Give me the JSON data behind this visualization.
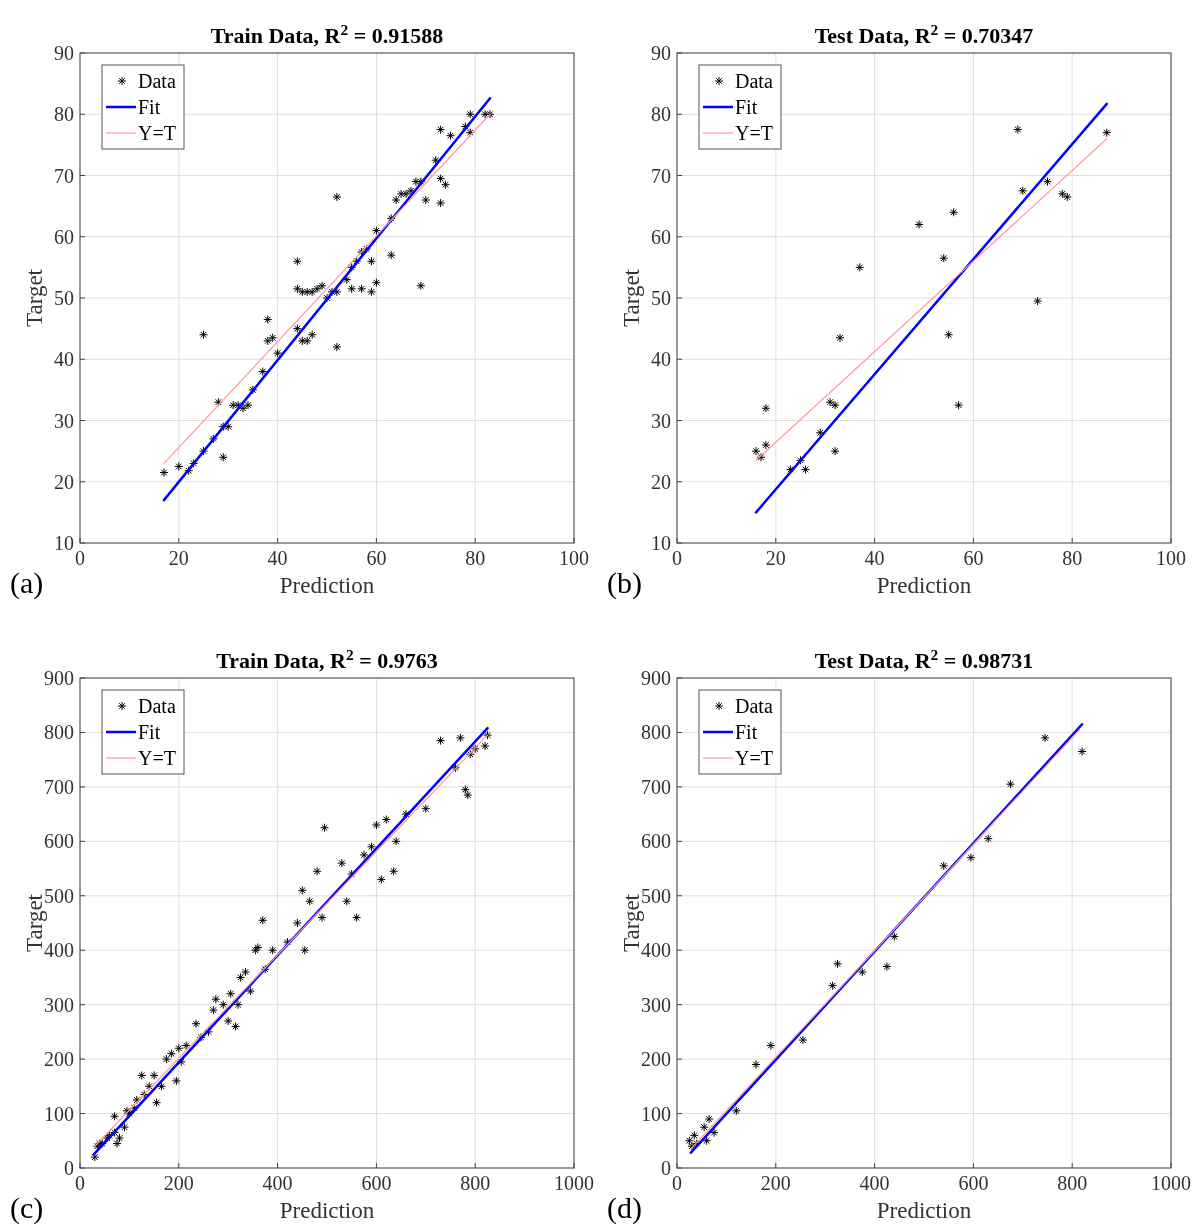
{
  "chart_data": [
    {
      "type": "scatter",
      "title": "Train Data, R$^{2}$ = 0.91588",
      "xlabel": "Prediction",
      "ylabel": "Target",
      "annotations": [
        "(a)"
      ],
      "xlim": [
        0,
        100
      ],
      "ylim": [
        10,
        90
      ],
      "xticks": [
        0,
        20,
        40,
        60,
        80,
        100
      ],
      "yticks": [
        10,
        20,
        30,
        40,
        50,
        60,
        70,
        80,
        90
      ],
      "grid": true,
      "legend": "top left",
      "series": [
        {
          "name": "Data",
          "marker": "cross",
          "color": "#000000",
          "x": [
            17,
            20,
            22,
            23,
            25,
            25,
            27,
            28,
            29,
            29,
            30,
            31,
            32,
            33,
            34,
            35,
            37,
            38,
            39,
            38,
            40,
            44,
            44,
            44,
            45,
            45,
            46,
            46,
            47,
            47,
            48,
            49,
            50,
            51,
            52,
            52,
            52,
            54,
            55,
            55,
            56,
            57,
            57,
            58,
            59,
            59,
            60,
            60,
            63,
            63,
            64,
            65,
            66,
            67,
            68,
            69,
            69,
            70,
            72,
            73,
            73,
            73,
            74,
            75,
            78,
            79,
            79,
            82,
            83
          ],
          "values": [
            21.5,
            22.5,
            21.8,
            23,
            25,
            44,
            27,
            33,
            24,
            29,
            29,
            32.5,
            32.5,
            32,
            32.5,
            35,
            38,
            43,
            43.5,
            46.5,
            41,
            45,
            56,
            51.5,
            43,
            51,
            43,
            51,
            44,
            51,
            51.5,
            52,
            50,
            51,
            42,
            66.5,
            51,
            53,
            55,
            51.5,
            56,
            51.5,
            57.5,
            58,
            56,
            51,
            61,
            52.5,
            57,
            63,
            66,
            67,
            67,
            67.5,
            69,
            52,
            69,
            66,
            72.5,
            69.5,
            65.5,
            77.5,
            68.5,
            76.5,
            78,
            77,
            80,
            80,
            80
          ]
        },
        {
          "name": "Fit",
          "type": "line",
          "line_style": "solid",
          "color": "#0000ff",
          "x": [
            17,
            83
          ],
          "values": [
            17,
            82.6
          ]
        },
        {
          "name": "Y=T",
          "type": "line",
          "line_style": "solid",
          "color": "#ff9999",
          "x": [
            17,
            83
          ],
          "values": [
            23,
            80
          ]
        }
      ]
    },
    {
      "type": "scatter",
      "title": "Test Data, R$^{2}$ = 0.70347",
      "xlabel": "Prediction",
      "ylabel": "Target",
      "annotations": [
        "(b)"
      ],
      "xlim": [
        0,
        100
      ],
      "ylim": [
        10,
        90
      ],
      "xticks": [
        0,
        20,
        40,
        60,
        80,
        100
      ],
      "yticks": [
        10,
        20,
        30,
        40,
        50,
        60,
        70,
        80,
        90
      ],
      "grid": true,
      "legend": "top left",
      "series": [
        {
          "name": "Data",
          "marker": "cross",
          "color": "#000000",
          "x": [
            16,
            17,
            18,
            18,
            23,
            25,
            26,
            29,
            31,
            32,
            32,
            33,
            37,
            49,
            54,
            55,
            56,
            57,
            69,
            70,
            73,
            75,
            78,
            79,
            87
          ],
          "values": [
            25,
            24,
            26,
            32,
            22,
            23.5,
            22,
            28,
            33,
            32.5,
            25,
            43.5,
            55,
            62,
            56.5,
            44,
            64,
            32.5,
            77.5,
            67.5,
            49.5,
            69,
            67,
            66.5,
            77
          ]
        },
        {
          "name": "Fit",
          "type": "line",
          "line_style": "solid",
          "color": "#0000ff",
          "x": [
            16,
            87
          ],
          "values": [
            15,
            81.7
          ]
        },
        {
          "name": "Y=T",
          "type": "line",
          "line_style": "solid",
          "color": "#ff9999",
          "x": [
            16,
            87
          ],
          "values": [
            23.5,
            76
          ]
        }
      ]
    },
    {
      "type": "scatter",
      "title": "Train Data, R$^{2}$ = 0.9763",
      "xlabel": "Prediction",
      "ylabel": "Target",
      "annotations": [
        "(c)"
      ],
      "xlim": [
        0,
        1000
      ],
      "ylim": [
        0,
        900
      ],
      "xticks": [
        0,
        200,
        400,
        600,
        800,
        1000
      ],
      "yticks": [
        0,
        100,
        200,
        300,
        400,
        500,
        600,
        700,
        800,
        900
      ],
      "grid": true,
      "legend": "top left",
      "series": [
        {
          "name": "Data",
          "marker": "cross",
          "color": "#000000",
          "x": [
            30,
            35,
            40,
            45,
            55,
            60,
            70,
            70,
            75,
            80,
            90,
            95,
            100,
            110,
            115,
            125,
            130,
            140,
            150,
            155,
            165,
            175,
            185,
            195,
            200,
            205,
            215,
            235,
            245,
            260,
            270,
            275,
            290,
            300,
            305,
            315,
            320,
            325,
            335,
            345,
            355,
            360,
            370,
            375,
            390,
            420,
            440,
            450,
            455,
            465,
            480,
            490,
            495,
            530,
            540,
            550,
            560,
            575,
            590,
            600,
            610,
            620,
            635,
            640,
            660,
            700,
            730,
            760,
            770,
            780,
            785,
            790,
            800,
            820,
            825
          ],
          "values": [
            20,
            40,
            45,
            45,
            55,
            60,
            95,
            65,
            45,
            55,
            75,
            105,
            100,
            110,
            125,
            170,
            135,
            150,
            170,
            120,
            150,
            200,
            210,
            160,
            220,
            195,
            225,
            265,
            240,
            250,
            290,
            310,
            300,
            270,
            320,
            260,
            300,
            350,
            360,
            325,
            400,
            405,
            455,
            365,
            400,
            415,
            450,
            510,
            400,
            490,
            545,
            460,
            625,
            560,
            490,
            540,
            460,
            575,
            590,
            630,
            530,
            640,
            545,
            600,
            650,
            660,
            785,
            735,
            790,
            695,
            685,
            760,
            770,
            775,
            795
          ]
        },
        {
          "name": "Fit",
          "type": "line",
          "line_style": "solid",
          "color": "#0000ff",
          "x": [
            28,
            825
          ],
          "values": [
            25,
            808
          ]
        },
        {
          "name": "Y=T",
          "type": "line",
          "line_style": "solid",
          "color": "#ff9999",
          "x": [
            30,
            825
          ],
          "values": [
            40,
            795
          ]
        }
      ]
    },
    {
      "type": "scatter",
      "title": "Test Data, R$^{2}$ = 0.98731",
      "xlabel": "Prediction",
      "ylabel": "Target",
      "annotations": [
        "(d)"
      ],
      "xlim": [
        0,
        1000
      ],
      "ylim": [
        0,
        900
      ],
      "xticks": [
        0,
        200,
        400,
        600,
        800,
        1000
      ],
      "yticks": [
        0,
        100,
        200,
        300,
        400,
        500,
        600,
        700,
        800,
        900
      ],
      "grid": true,
      "legend": "top left",
      "series": [
        {
          "name": "Data",
          "marker": "cross",
          "color": "#000000",
          "x": [
            25,
            30,
            35,
            40,
            55,
            60,
            65,
            75,
            120,
            160,
            190,
            255,
            315,
            325,
            375,
            425,
            440,
            540,
            595,
            630,
            675,
            745,
            820
          ],
          "values": [
            50,
            40,
            60,
            45,
            75,
            50,
            90,
            65,
            105,
            190,
            225,
            235,
            335,
            375,
            360,
            370,
            425,
            555,
            570,
            605,
            705,
            790,
            765
          ]
        },
        {
          "name": "Fit",
          "type": "line",
          "line_style": "solid",
          "color": "#0000ff",
          "x": [
            28,
            820
          ],
          "values": [
            28,
            815
          ]
        },
        {
          "name": "Y=T",
          "type": "line",
          "line_style": "solid",
          "color": "#ff9999",
          "x": [
            28,
            815
          ],
          "values": [
            35,
            805
          ]
        }
      ]
    }
  ]
}
